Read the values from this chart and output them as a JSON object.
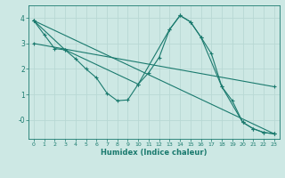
{
  "xlabel": "Humidex (Indice chaleur)",
  "xlim": [
    -0.5,
    23.5
  ],
  "ylim": [
    -0.75,
    4.5
  ],
  "bg_color": "#cde8e4",
  "line_color": "#1a7a6e",
  "grid_color": "#b8d8d4",
  "series1_x": [
    0,
    1,
    2,
    3,
    4,
    5,
    6,
    7,
    8,
    9,
    10,
    11,
    12,
    13,
    14,
    15,
    16,
    17,
    18,
    19,
    20,
    21,
    22,
    23
  ],
  "series1_y": [
    3.9,
    3.35,
    2.8,
    2.75,
    2.4,
    2.0,
    1.65,
    1.05,
    0.75,
    0.78,
    1.4,
    1.85,
    2.45,
    3.55,
    4.1,
    3.85,
    3.25,
    2.6,
    1.3,
    0.75,
    -0.1,
    -0.35,
    -0.5,
    -0.55
  ],
  "series2_x": [
    0,
    3,
    10,
    13,
    14,
    15,
    16,
    18,
    20,
    21,
    22,
    23
  ],
  "series2_y": [
    3.9,
    2.75,
    1.4,
    3.55,
    4.1,
    3.85,
    3.25,
    1.3,
    -0.1,
    -0.35,
    -0.5,
    -0.55
  ],
  "series3_x": [
    0,
    23
  ],
  "series3_y": [
    3.9,
    -0.55
  ],
  "series4_x": [
    0,
    23
  ],
  "series4_y": [
    3.0,
    1.3
  ],
  "xticks": [
    0,
    1,
    2,
    3,
    4,
    5,
    6,
    7,
    8,
    9,
    10,
    11,
    12,
    13,
    14,
    15,
    16,
    17,
    18,
    19,
    20,
    21,
    22,
    23
  ],
  "yticks": [
    0,
    1,
    2,
    3,
    4
  ],
  "ytick_labels": [
    "-0",
    "1",
    "2",
    "3",
    "4"
  ]
}
